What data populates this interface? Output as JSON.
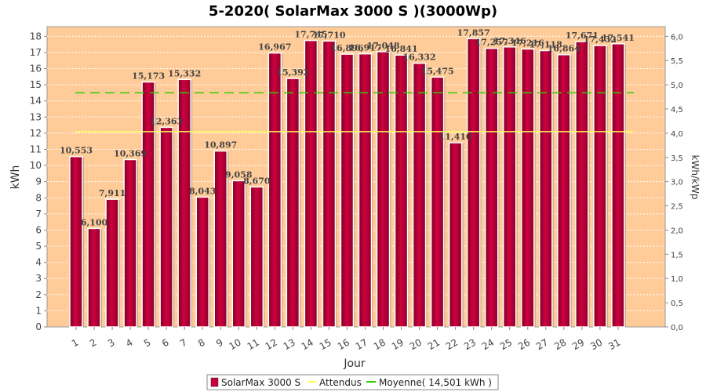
{
  "chart_data": {
    "type": "bar",
    "title": "5-2020( SolarMax 3000 S )(3000Wp)",
    "xlabel": "Jour",
    "ylabel": "kWh",
    "ylabel_right": "kWh/kWp",
    "categories": [
      "1",
      "2",
      "3",
      "4",
      "5",
      "6",
      "7",
      "8",
      "9",
      "10",
      "11",
      "12",
      "13",
      "14",
      "15",
      "16",
      "17",
      "18",
      "19",
      "20",
      "21",
      "22",
      "23",
      "24",
      "25",
      "26",
      "27",
      "28",
      "29",
      "30",
      "31"
    ],
    "series": [
      {
        "name": "SolarMax 3000 S",
        "color": "#c8003c",
        "values": [
          10.553,
          6.1,
          7.911,
          10.369,
          15.173,
          12.363,
          15.332,
          8.043,
          10.897,
          9.058,
          8.67,
          16.967,
          15.392,
          17.745,
          17.71,
          16.896,
          16.917,
          17.048,
          16.841,
          16.332,
          15.475,
          11.41,
          17.857,
          17.257,
          17.346,
          17.216,
          17.118,
          16.864,
          17.671,
          17.432,
          17.541
        ],
        "labels": [
          "10,553",
          "6,100",
          "7,911",
          "10,369",
          "15,173",
          "12,363",
          "15,332",
          "8,043",
          "10,897",
          "9,058",
          "8,670",
          "16,967",
          "15,392",
          "17,745",
          "17,710",
          "16,896",
          "16,917",
          "17,048",
          "16,841",
          "16,332",
          "15,475",
          "11,410",
          "17,857",
          "17,257",
          "17,346",
          "17,216",
          "17,118",
          "16,864",
          "17,671",
          "17,432",
          "17,541"
        ]
      }
    ],
    "attendus": {
      "name": "Attendus",
      "value": 12.1,
      "color": "#ffff66"
    },
    "moyenne": {
      "name": "Moyenne( 14,501 kWh )",
      "value": 14.501,
      "color": "#33cc00"
    },
    "ylim": [
      0,
      18.6
    ],
    "yticks": [
      "0",
      "1",
      "2",
      "3",
      "4",
      "5",
      "6",
      "7",
      "8",
      "9",
      "10",
      "11",
      "12",
      "13",
      "14",
      "15",
      "16",
      "17",
      "18"
    ],
    "ylim_right": [
      0,
      6.2
    ],
    "yticks_right": [
      "0,0",
      "0,5",
      "1,0",
      "1,5",
      "2,0",
      "2,5",
      "3,0",
      "3,5",
      "4,0",
      "4,5",
      "5,0",
      "5,5",
      "6,0"
    ],
    "plot_background": "#ffcc99",
    "grid": true,
    "legend_position": "bottom"
  }
}
